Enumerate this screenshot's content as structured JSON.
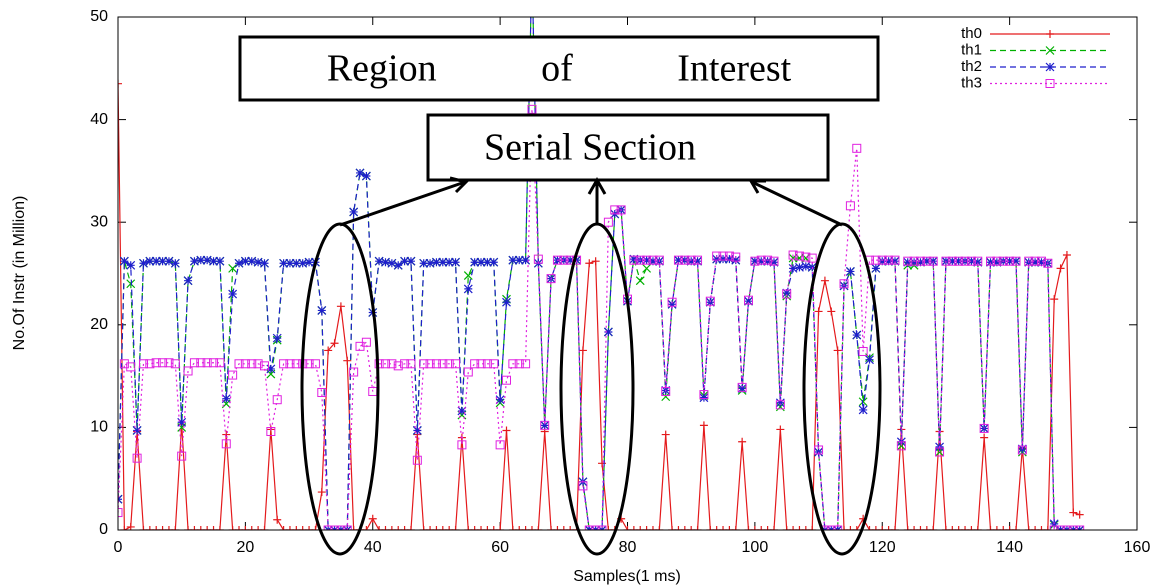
{
  "chart_data": {
    "type": "line",
    "xlabel": "Samples(1 ms)",
    "ylabel": "No.Of Instr (in Million)",
    "annotations": [
      "Region of Interest",
      "Serial Section"
    ],
    "xlim": [
      0,
      160
    ],
    "xticks": [
      0,
      20,
      40,
      60,
      80,
      100,
      120,
      140,
      160
    ],
    "ylim": [
      0,
      50
    ],
    "yticks": [
      0,
      10,
      20,
      30,
      40,
      50
    ],
    "legend": "upper right",
    "x": [
      0,
      1,
      2,
      3,
      4,
      5,
      6,
      7,
      8,
      9,
      10,
      11,
      12,
      13,
      14,
      15,
      16,
      17,
      18,
      19,
      20,
      21,
      22,
      23,
      24,
      25,
      26,
      27,
      28,
      29,
      30,
      31,
      32,
      33,
      34,
      35,
      36,
      37,
      38,
      39,
      40,
      41,
      42,
      43,
      44,
      45,
      46,
      47,
      48,
      49,
      50,
      51,
      52,
      53,
      54,
      55,
      56,
      57,
      58,
      59,
      60,
      61,
      62,
      63,
      64,
      65,
      66,
      67,
      68,
      69,
      70,
      71,
      72,
      73,
      74,
      75,
      76,
      77,
      78,
      79,
      80,
      81,
      82,
      83,
      84,
      85,
      86,
      87,
      88,
      89,
      90,
      91,
      92,
      93,
      94,
      95,
      96,
      97,
      98,
      99,
      100,
      101,
      102,
      103,
      104,
      105,
      106,
      107,
      108,
      109,
      110,
      111,
      112,
      113,
      114,
      115,
      116,
      117,
      118,
      119,
      120,
      121,
      122,
      123,
      124,
      125,
      126,
      127,
      128,
      129,
      130,
      131,
      132,
      133,
      134,
      135,
      136,
      137,
      138,
      139,
      140,
      141,
      142,
      143,
      144,
      145,
      146,
      147,
      148,
      149,
      150,
      151
    ],
    "series": [
      {
        "name": "th0",
        "color": "#e41a1c",
        "marker": "plus",
        "line_style": "solid",
        "values": [
          43.5,
          0,
          0.3,
          9.6,
          0,
          0,
          0,
          0,
          0,
          0,
          10.3,
          0,
          0,
          0,
          0,
          0,
          0,
          9.3,
          0,
          0,
          0,
          0,
          0,
          0,
          9.8,
          1,
          0,
          0,
          0,
          0,
          0,
          0,
          3.7,
          17.5,
          18.2,
          21.8,
          16.5,
          0,
          0,
          0,
          1.1,
          0,
          0,
          0,
          0,
          0,
          0,
          9.3,
          0,
          0,
          0,
          0,
          0,
          0,
          9,
          0,
          0,
          0,
          0,
          0,
          0,
          9.7,
          0,
          0,
          0,
          0,
          0,
          9.6,
          0,
          0,
          0,
          0,
          0,
          17.5,
          26,
          26.2,
          6.5,
          0,
          0,
          1.1,
          0,
          0,
          0,
          0,
          0,
          0,
          9.3,
          0,
          0,
          0,
          0,
          0,
          10.2,
          0,
          0,
          0,
          0,
          0,
          8.6,
          0,
          0,
          0,
          0,
          0,
          9.8,
          0,
          0,
          0,
          0,
          0,
          21.3,
          24.3,
          21.3,
          17.5,
          0,
          0,
          0,
          1.1,
          0,
          0,
          0,
          0,
          0,
          9.8,
          0,
          0,
          0,
          0,
          0,
          9.6,
          0,
          0,
          0,
          0,
          0,
          0,
          9,
          0,
          0,
          0,
          0,
          0,
          8,
          0,
          0,
          0,
          0,
          22.5,
          25.5,
          26.8,
          1.7,
          1.5
        ]
      },
      {
        "name": "th1",
        "color": "#00b000",
        "marker": "cross",
        "line_style": "dashed",
        "values": [
          3,
          26.2,
          24,
          9.7,
          26,
          26.2,
          26.2,
          26.2,
          26.2,
          26,
          10,
          24.3,
          26.2,
          26.3,
          26.3,
          26.2,
          26.2,
          12.3,
          25.5,
          26,
          26.2,
          26.2,
          26.1,
          26,
          15.2,
          18.5,
          26,
          26,
          26,
          26,
          26.1,
          26.1,
          21.4,
          0,
          0,
          0,
          0,
          31,
          34.8,
          34.5,
          21.2,
          26.2,
          26.1,
          26,
          25.8,
          26.2,
          26.2,
          9.7,
          26,
          26,
          26.1,
          26.1,
          26.1,
          26.1,
          11.2,
          24.8,
          26.1,
          26.1,
          26.1,
          26.1,
          12.4,
          22.5,
          26.3,
          26.3,
          26.3,
          55,
          26,
          10.2,
          24.5,
          26.3,
          26.3,
          26.3,
          26.3,
          4.7,
          0,
          0,
          0,
          19.3,
          30.8,
          31.2,
          22.3,
          26.4,
          24.3,
          25.5,
          26.2,
          26.2,
          13,
          22,
          26.3,
          26.3,
          26.2,
          26.2,
          13.1,
          22.2,
          26.4,
          26.4,
          26.4,
          26.3,
          13.6,
          22.3,
          26.2,
          26.2,
          26.2,
          26.1,
          12,
          22.8,
          26.5,
          26.5,
          26.5,
          25.6,
          7.6,
          0,
          0,
          0,
          23.8,
          25.2,
          19,
          12.5,
          16.8,
          25.5,
          26.2,
          26.2,
          26.2,
          8.2,
          25.8,
          25.8,
          26.1,
          26.2,
          26.2,
          7.6,
          26.2,
          26.2,
          26.2,
          26.2,
          26.2,
          26.1,
          9.9,
          26.1,
          26.1,
          26.2,
          26.2,
          26.2,
          7.6,
          26.1,
          26.1,
          26.1,
          26,
          0.5,
          0,
          0,
          0,
          0
        ]
      },
      {
        "name": "th2",
        "color": "#1f1fcc",
        "marker": "star",
        "line_style": "dashed",
        "values": [
          3,
          26.2,
          25.8,
          9.7,
          26,
          26.2,
          26.2,
          26.2,
          26.2,
          26,
          10.5,
          24.3,
          26.2,
          26.3,
          26.3,
          26.2,
          26.2,
          12.8,
          23,
          26,
          26.2,
          26.2,
          26.1,
          26,
          15.7,
          18.7,
          26,
          26,
          26,
          26,
          26.1,
          26.1,
          21.4,
          0,
          0,
          0,
          0,
          31,
          34.8,
          34.5,
          21.2,
          26.2,
          26.1,
          26,
          25.8,
          26.2,
          26.2,
          9.7,
          26,
          26,
          26.1,
          26.1,
          26.1,
          26.1,
          11.6,
          23.5,
          26.1,
          26.1,
          26.1,
          26.1,
          12.7,
          22.2,
          26.3,
          26.3,
          26.3,
          55,
          26,
          10.2,
          24.5,
          26.3,
          26.3,
          26.3,
          26.3,
          4.7,
          0,
          0,
          0,
          19.3,
          30.8,
          31.2,
          22.3,
          26.4,
          26.3,
          26.3,
          26.2,
          26.2,
          13.6,
          22,
          26.3,
          26.3,
          26.2,
          26.2,
          12.9,
          22.2,
          26.4,
          26.4,
          26.4,
          26.3,
          13.8,
          22.3,
          26.2,
          26.2,
          26.2,
          26.1,
          12.4,
          23.1,
          25.5,
          25.6,
          25.7,
          25.6,
          7.6,
          0,
          0,
          0,
          23.8,
          25.2,
          19,
          11.7,
          16.6,
          25.5,
          26.2,
          26.2,
          26.2,
          8.6,
          26.1,
          26.1,
          26.1,
          26.2,
          26.2,
          8.1,
          26.2,
          26.2,
          26.2,
          26.2,
          26.2,
          26.1,
          9.9,
          26.1,
          26.1,
          26.2,
          26.2,
          26.2,
          7.9,
          26.1,
          26.1,
          26.1,
          26,
          0.6,
          0,
          0,
          0,
          0
        ]
      },
      {
        "name": "th3",
        "color": "#e020e0",
        "marker": "square",
        "line_style": "dotted",
        "values": [
          1.7,
          16.2,
          15.9,
          7,
          16.2,
          16.2,
          16.3,
          16.3,
          16.3,
          16.2,
          7.2,
          15.5,
          16.3,
          16.3,
          16.3,
          16.3,
          16.3,
          8.4,
          15.1,
          16.2,
          16.2,
          16.2,
          16.2,
          16,
          9.6,
          12.7,
          16.2,
          16.2,
          16.2,
          16.2,
          16.2,
          16.2,
          13.4,
          0,
          0,
          0,
          0,
          15.4,
          17.9,
          18.3,
          13.5,
          16.2,
          16.2,
          16.2,
          16,
          16.2,
          16.2,
          6.8,
          16.2,
          16.2,
          16.2,
          16.2,
          16.2,
          16.2,
          8.3,
          15.4,
          16.2,
          16.2,
          16.2,
          16.2,
          8.3,
          14.6,
          16.2,
          16.2,
          16.2,
          41,
          26.4,
          10.2,
          24.5,
          26.3,
          26.3,
          26.3,
          26.3,
          4.3,
          0,
          0,
          0,
          30,
          31.2,
          31.2,
          22.5,
          26.3,
          26.3,
          26.3,
          26.3,
          26.3,
          13.5,
          22.2,
          26.3,
          26.3,
          26.3,
          26.3,
          13.2,
          22.3,
          26.7,
          26.7,
          26.7,
          26.6,
          13.9,
          22.4,
          26.2,
          26.3,
          26.3,
          26.2,
          12.2,
          23,
          26.8,
          26.7,
          26.6,
          26.5,
          7.8,
          0,
          0,
          0,
          24,
          31.6,
          37.2,
          17.4,
          26.3,
          26.3,
          26.3,
          26.3,
          26.3,
          8.2,
          26.2,
          26.2,
          26.2,
          26.2,
          26.2,
          7.6,
          26.2,
          26.2,
          26.2,
          26.2,
          26.2,
          26.2,
          9.9,
          26.2,
          26.2,
          26.2,
          26.2,
          26.2,
          7.8,
          26.2,
          26.2,
          26.2,
          26,
          0,
          0,
          0,
          0,
          0
        ]
      }
    ]
  }
}
